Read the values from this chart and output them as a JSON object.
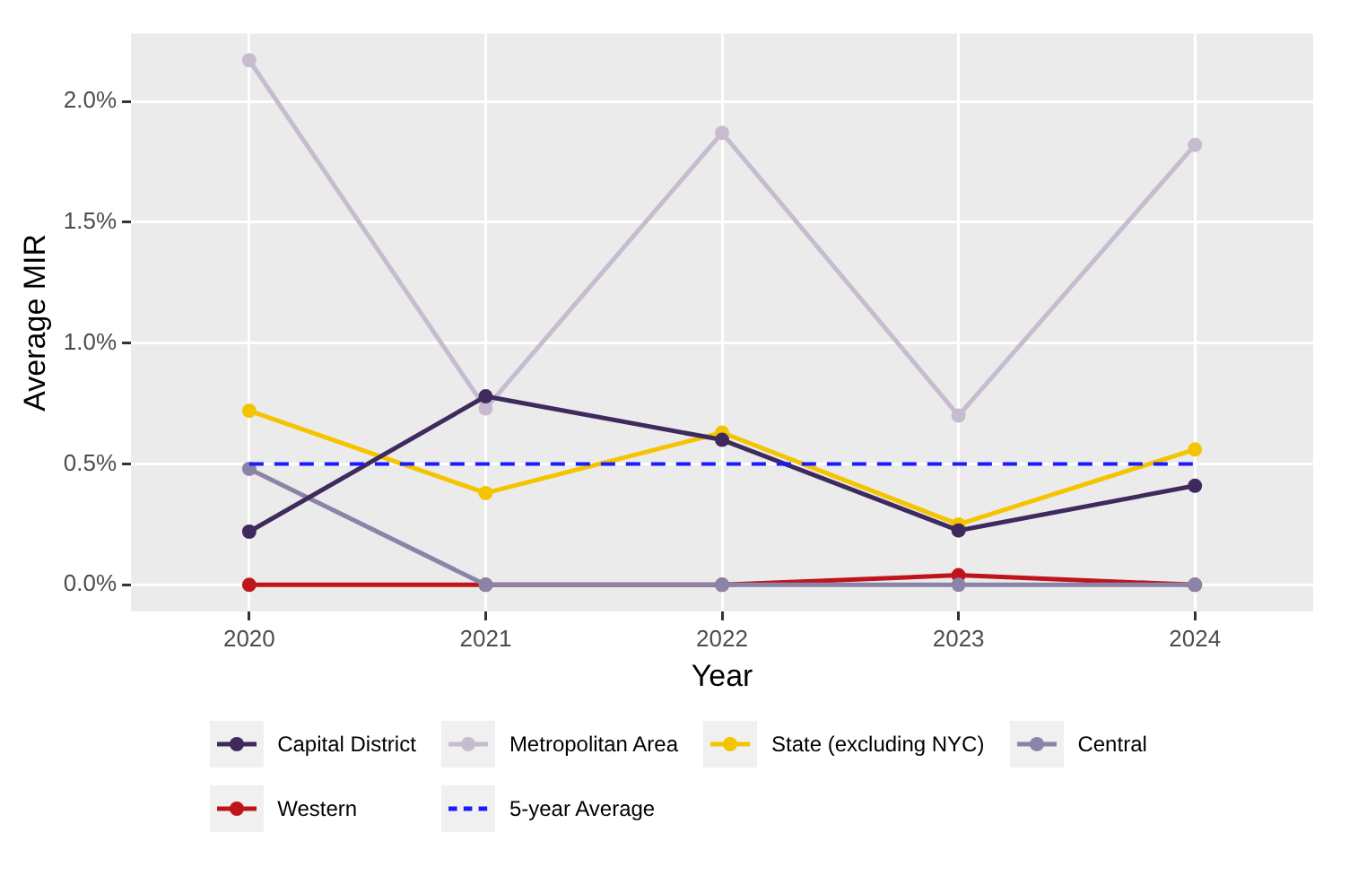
{
  "chart_data": {
    "type": "line",
    "xlabel": "Year",
    "ylabel": "Average MIR",
    "categories": [
      "2020",
      "2021",
      "2022",
      "2023",
      "2024"
    ],
    "series": [
      {
        "name": "Capital District",
        "color": "#3f2a5e",
        "values": [
          0.22,
          0.78,
          0.6,
          0.225,
          0.41
        ]
      },
      {
        "name": "Metropolitan Area",
        "color": "#c7bccf",
        "values": [
          2.17,
          0.73,
          1.87,
          0.7,
          1.82
        ]
      },
      {
        "name": "State (excluding NYC)",
        "color": "#f5c400",
        "values": [
          0.72,
          0.38,
          0.63,
          0.25,
          0.56
        ]
      },
      {
        "name": "Central",
        "color": "#8a84a8",
        "values": [
          0.48,
          0,
          0,
          0,
          0
        ]
      },
      {
        "name": "Western",
        "color": "#c0141b",
        "values": [
          0,
          0,
          0,
          0.04,
          0
        ]
      }
    ],
    "ref_lines": [
      {
        "axis": "y",
        "value": 0.5,
        "label": "5-year Average",
        "color": "#1a1aff",
        "line_style": "dashed"
      }
    ],
    "ylim": [
      -0.11,
      2.28
    ],
    "yticks": [
      {
        "value": 0,
        "label": "0.0%"
      },
      {
        "value": 0.5,
        "label": "0.5%"
      },
      {
        "value": 1,
        "label": "1.0%"
      },
      {
        "value": 1.5,
        "label": "1.5%"
      },
      {
        "value": 2,
        "label": "2.0%"
      }
    ],
    "grid": true,
    "legend": "bottom",
    "marker": "circle",
    "line_style": "solid"
  }
}
